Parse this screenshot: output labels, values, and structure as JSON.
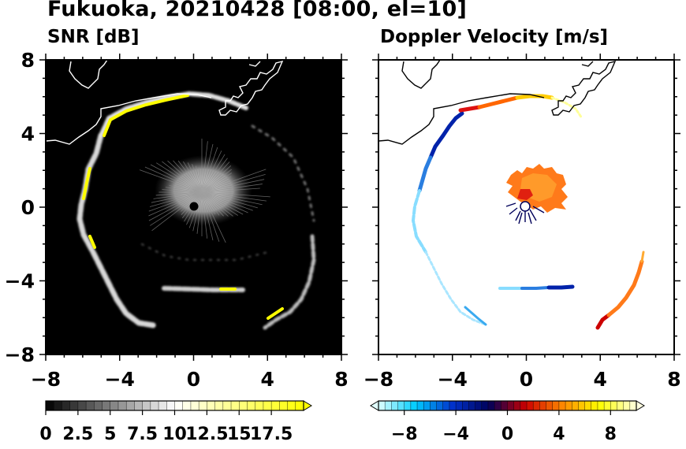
{
  "title": "Fukuoka, 20210428 [08:00, el=10]",
  "chart_data": [
    {
      "type": "heatmap",
      "title": "SNR [dB]",
      "xlim": [
        -8,
        8
      ],
      "ylim": [
        -8,
        8
      ],
      "x_ticks": [
        -8,
        -4,
        0,
        4,
        8
      ],
      "y_ticks": [
        -8,
        -4,
        0,
        4,
        8
      ],
      "x_tick_labels": [
        "−8",
        "−4",
        "0",
        "4",
        "8"
      ],
      "y_tick_labels": [
        "−8",
        "−4",
        "0",
        "4",
        "8"
      ],
      "colorbar": {
        "range": [
          0,
          20
        ],
        "ticks": [
          0,
          2.5,
          5,
          7.5,
          10,
          12.5,
          15,
          17.5
        ],
        "tick_labels": [
          "0",
          "2.5",
          "5",
          "7.5",
          "10",
          "12.5",
          "15",
          "17.5"
        ],
        "colors": [
          "#000000",
          "#ffffff",
          "#ffff00"
        ],
        "extend": "max"
      },
      "background_color": "#000000"
    },
    {
      "type": "heatmap",
      "title": "Doppler Velocity [m/s]",
      "xlim": [
        -8,
        8
      ],
      "ylim": [
        -8,
        8
      ],
      "x_ticks": [
        -8,
        -4,
        0,
        4,
        8
      ],
      "y_ticks": [
        -8,
        -4,
        0,
        4,
        8
      ],
      "x_tick_labels": [
        "−8",
        "−4",
        "0",
        "4",
        "8"
      ],
      "colorbar": {
        "range": [
          -10,
          10
        ],
        "ticks": [
          -8,
          -4,
          0,
          4,
          8
        ],
        "tick_labels": [
          "−8",
          "−4",
          "0",
          "4",
          "8"
        ],
        "colors": [
          "#e0ffff",
          "#00ccff",
          "#0033cc",
          "#00005a",
          "#cc0000",
          "#ff8800",
          "#ffff00",
          "#ffffe0"
        ],
        "extend": "both"
      },
      "background_color": "#ffffff"
    }
  ]
}
